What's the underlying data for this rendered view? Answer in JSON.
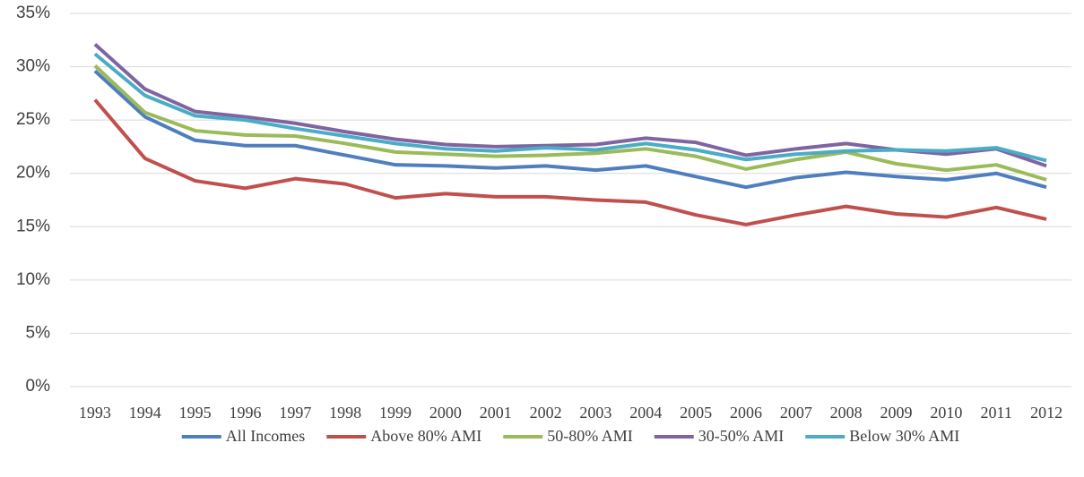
{
  "chart_data": {
    "type": "line",
    "categories": [
      "1993",
      "1994",
      "1995",
      "1996",
      "1997",
      "1998",
      "1999",
      "2000",
      "2001",
      "2002",
      "2003",
      "2004",
      "2005",
      "2006",
      "2007",
      "2008",
      "2009",
      "2010",
      "2011",
      "2012"
    ],
    "series": [
      {
        "name": "All Incomes",
        "color": "#4f7ec0",
        "values": [
          29.6,
          25.3,
          23.1,
          22.6,
          22.6,
          21.7,
          20.8,
          20.7,
          20.5,
          20.7,
          20.3,
          20.7,
          19.7,
          18.7,
          19.6,
          20.1,
          19.7,
          19.4,
          20.0,
          18.7
        ]
      },
      {
        "name": "Above 80% AMI",
        "color": "#c0504d",
        "values": [
          26.9,
          21.4,
          19.3,
          18.6,
          19.5,
          19.0,
          17.7,
          18.1,
          17.8,
          17.8,
          17.5,
          17.3,
          16.1,
          15.2,
          16.1,
          16.9,
          16.2,
          15.9,
          16.8,
          15.7
        ]
      },
      {
        "name": "50-80% AMI",
        "color": "#9bbb59",
        "values": [
          30.1,
          25.7,
          24.0,
          23.6,
          23.5,
          22.8,
          22.0,
          21.8,
          21.6,
          21.7,
          21.9,
          22.3,
          21.6,
          20.4,
          21.3,
          22.0,
          20.9,
          20.3,
          20.8,
          19.4
        ]
      },
      {
        "name": "30-50% AMI",
        "color": "#8064a2",
        "values": [
          32.1,
          27.9,
          25.8,
          25.3,
          24.7,
          23.9,
          23.2,
          22.7,
          22.5,
          22.6,
          22.7,
          23.3,
          22.9,
          21.7,
          22.3,
          22.8,
          22.2,
          21.8,
          22.3,
          20.7
        ]
      },
      {
        "name": "Below 30% AMI",
        "color": "#4bacc6",
        "values": [
          31.2,
          27.3,
          25.4,
          25.0,
          24.2,
          23.5,
          22.8,
          22.3,
          22.1,
          22.4,
          22.2,
          22.8,
          22.2,
          21.3,
          21.8,
          22.1,
          22.2,
          22.1,
          22.4,
          21.2
        ]
      }
    ],
    "ylim": [
      0,
      35
    ],
    "yticks": [
      {
        "value": 0,
        "label": "0%"
      },
      {
        "value": 5,
        "label": "5%"
      },
      {
        "value": 10,
        "label": "10%"
      },
      {
        "value": 15,
        "label": "15%"
      },
      {
        "value": 20,
        "label": "20%"
      },
      {
        "value": 25,
        "label": "25%"
      },
      {
        "value": 30,
        "label": "30%"
      },
      {
        "value": 35,
        "label": "35%"
      }
    ],
    "grid": true,
    "legend": "bottom"
  }
}
